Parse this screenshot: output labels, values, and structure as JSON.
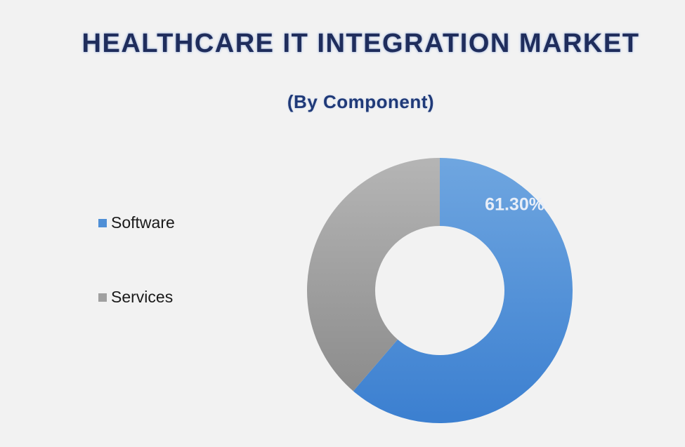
{
  "chart_data": {
    "type": "pie",
    "title": "HEALTHCARE IT INTEGRATION MARKET",
    "subtitle": "(By Component)",
    "categories": [
      "Software",
      "Services"
    ],
    "values": [
      61.3,
      38.7
    ],
    "data_labels": [
      "61.30%",
      ""
    ],
    "colors": [
      "#4f8fd6",
      "#a0a0a0"
    ],
    "donut": true,
    "legend_position": "left"
  }
}
